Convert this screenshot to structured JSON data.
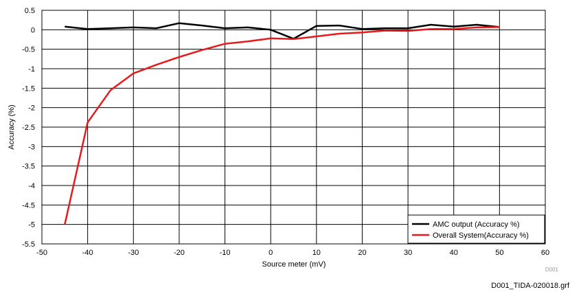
{
  "chart_data": {
    "type": "line",
    "xlabel": "Source meter (mV)",
    "ylabel": "Accuracy (%)",
    "xlim": [
      -50,
      60
    ],
    "ylim": [
      -5.5,
      0.5
    ],
    "x_ticks": [
      "-50",
      "-40",
      "-30",
      "-20",
      "-10",
      "0",
      "10",
      "20",
      "30",
      "40",
      "50",
      "60"
    ],
    "y_ticks": [
      "0.5",
      "0",
      "-0.5",
      "-1",
      "-1.5",
      "-2",
      "-2.5",
      "-3",
      "-3.5",
      "-4",
      "-4.5",
      "-5",
      "-5.5"
    ],
    "grid": true,
    "legend_position": "bottom-right",
    "series": [
      {
        "name": "AMC output (Accuracy %)",
        "color": "#000000",
        "x": [
          -45,
          -40,
          -35,
          -30,
          -25,
          -20,
          -15,
          -10,
          -5,
          0,
          5,
          10,
          15,
          20,
          25,
          30,
          35,
          40,
          45,
          50
        ],
        "y": [
          0.08,
          0.02,
          0.04,
          0.06,
          0.04,
          0.17,
          0.11,
          0.04,
          0.06,
          0.0,
          -0.23,
          0.1,
          0.11,
          0.02,
          0.04,
          0.04,
          0.13,
          0.08,
          0.13,
          0.07
        ]
      },
      {
        "name": "Overall System(Accuracy %)",
        "color": "#e8191a",
        "x": [
          -45,
          -40,
          -35,
          -30,
          -25,
          -20,
          -15,
          -10,
          -5,
          0,
          5,
          10,
          15,
          20,
          25,
          30,
          35,
          40,
          45,
          50
        ],
        "y": [
          -5.0,
          -2.38,
          -1.55,
          -1.12,
          -0.9,
          -0.7,
          -0.52,
          -0.36,
          -0.3,
          -0.22,
          -0.24,
          -0.17,
          -0.1,
          -0.07,
          -0.02,
          -0.03,
          0.02,
          0.02,
          0.06,
          0.07
        ]
      }
    ]
  },
  "annotations": {
    "plot_tag": "D001",
    "file_tag": "D001_TIDA-020018.grf"
  }
}
